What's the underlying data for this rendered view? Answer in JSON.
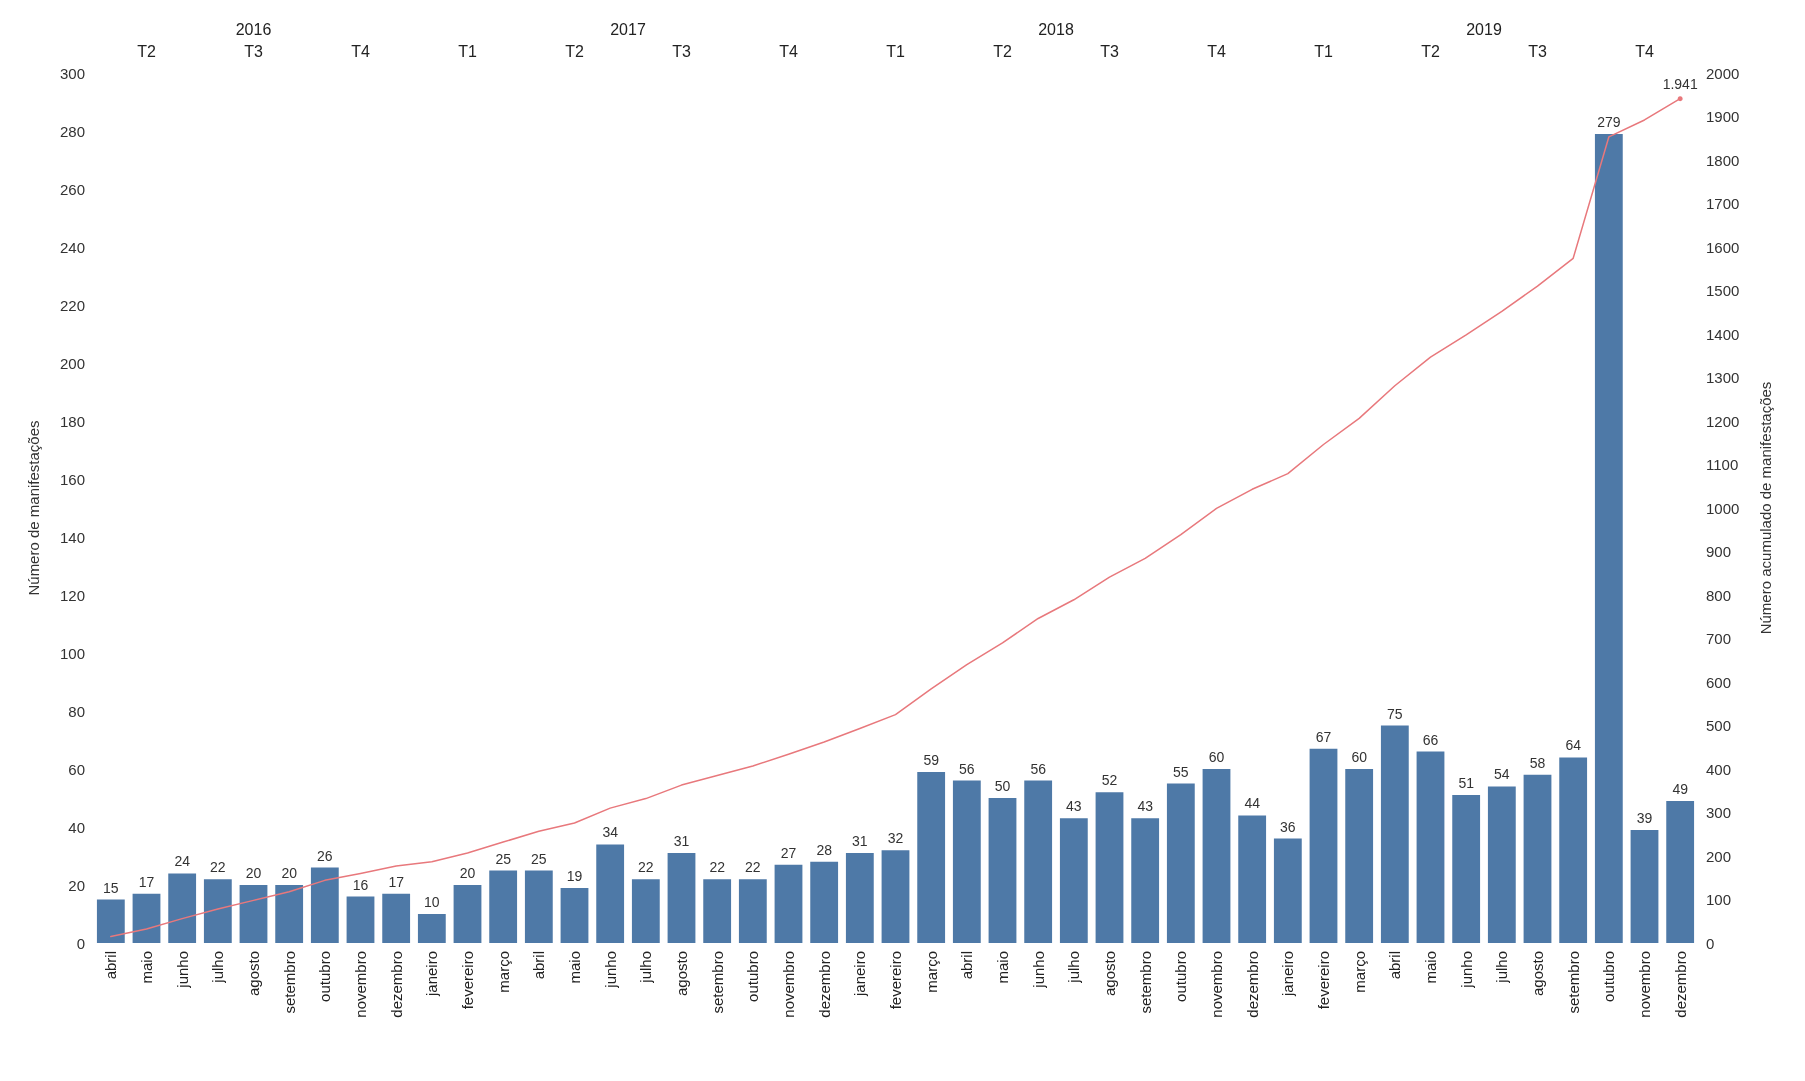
{
  "chart_data": {
    "type": "bar",
    "ylabel": "Número de manifestações",
    "y2label": "Número acumulado de manifestações",
    "categories": [
      "abril",
      "maio",
      "junho",
      "julho",
      "agosto",
      "setembro",
      "outubro",
      "novembro",
      "dezembro",
      "janeiro",
      "fevereiro",
      "março",
      "abril",
      "maio",
      "junho",
      "julho",
      "agosto",
      "setembro",
      "outubro",
      "novembro",
      "dezembro",
      "janeiro",
      "fevereiro",
      "março",
      "abril",
      "maio",
      "junho",
      "julho",
      "agosto",
      "setembro",
      "outubro",
      "novembro",
      "dezembro",
      "janeiro",
      "fevereiro",
      "março",
      "abril",
      "maio",
      "junho",
      "julho",
      "agosto",
      "setembro",
      "outubro",
      "novembro",
      "dezembro"
    ],
    "series": [
      {
        "color": "#4e79a7",
        "values": [
          15,
          17,
          24,
          22,
          20,
          20,
          26,
          16,
          17,
          10,
          20,
          25,
          25,
          19,
          34,
          22,
          31,
          22,
          22,
          27,
          28,
          31,
          32,
          59,
          56,
          50,
          56,
          43,
          52,
          43,
          55,
          60,
          44,
          36,
          67,
          60,
          75,
          66,
          51,
          54,
          58,
          64,
          279,
          39,
          49
        ]
      },
      {
        "type": "line",
        "axis": "y2",
        "color": "#e8787c",
        "values": [
          15,
          32,
          56,
          78,
          98,
          118,
          144,
          160,
          177,
          187,
          207,
          232,
          257,
          276,
          310,
          332,
          363,
          385,
          407,
          434,
          462,
          493,
          525,
          584,
          640,
          690,
          746,
          789,
          841,
          884,
          939,
          999,
          1043,
          1079,
          1146,
          1206,
          1281,
          1347,
          1398,
          1452,
          1510,
          1574,
          1853,
          1892,
          1941
        ],
        "value_labels": [
          null,
          null,
          null,
          null,
          null,
          null,
          null,
          null,
          null,
          null,
          null,
          null,
          null,
          null,
          null,
          null,
          null,
          null,
          null,
          null,
          null,
          null,
          null,
          null,
          null,
          null,
          null,
          null,
          null,
          null,
          null,
          null,
          null,
          null,
          null,
          null,
          null,
          null,
          null,
          null,
          null,
          null,
          null,
          null,
          "1.941"
        ]
      }
    ],
    "data_labels": true,
    "ylim": [
      0,
      300
    ],
    "yticks": [
      0,
      20,
      40,
      60,
      80,
      100,
      120,
      140,
      160,
      180,
      200,
      220,
      240,
      260,
      280,
      300
    ],
    "y2lim": [
      0,
      2000
    ],
    "y2ticks": [
      0,
      100,
      200,
      300,
      400,
      500,
      600,
      700,
      800,
      900,
      1000,
      1100,
      1200,
      1300,
      1400,
      1500,
      1600,
      1700,
      1800,
      1900,
      2000
    ],
    "grid": false,
    "marker": "none",
    "line_style": "solid",
    "annotations": [
      "2016",
      "2017",
      "2018",
      "2019",
      "T2",
      "T3",
      "T4",
      "T1",
      "T2",
      "T3",
      "T4",
      "T1",
      "T2",
      "T3",
      "T4",
      "T1",
      "T2",
      "T3",
      "T4"
    ]
  }
}
